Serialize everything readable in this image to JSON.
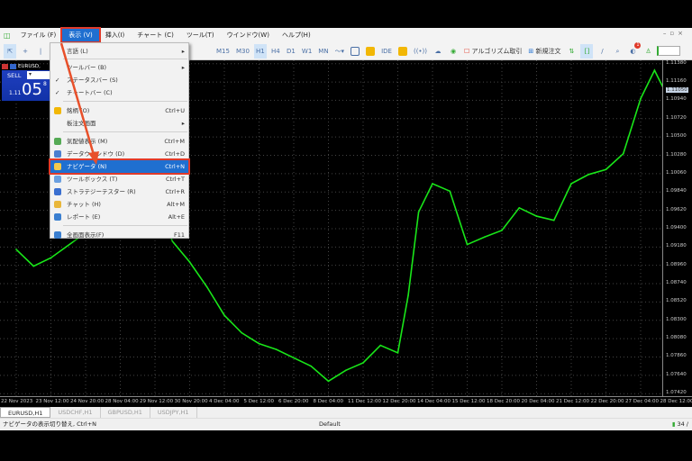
{
  "menubar": {
    "items": [
      "ファイル (F)",
      "表示 (V)",
      "挿入(I)",
      "チャート (C)",
      "ツール(T)",
      "ウインドウ(W)",
      "ヘルプ(H)"
    ],
    "active": "表示 (V)"
  },
  "toolbar": {
    "timeframes": [
      "M15",
      "M30",
      "H1",
      "H4",
      "D1",
      "W1",
      "MN"
    ],
    "selected_timeframe": "H1",
    "ide": "IDE",
    "algo_trading": "アルゴリズム取引",
    "new_order": "新規注文",
    "notification_count": "1"
  },
  "view_menu": {
    "items": [
      {
        "label": "言語 (L)",
        "shortcut": "",
        "submenu": true,
        "checked": false,
        "icon": ""
      },
      {
        "label": "ツールバー (B)",
        "shortcut": "",
        "submenu": true,
        "checked": false,
        "icon": ""
      },
      {
        "label": "ステータスバー (S)",
        "shortcut": "",
        "submenu": false,
        "checked": true,
        "icon": ""
      },
      {
        "label": "チャートバー (C)",
        "shortcut": "",
        "submenu": false,
        "checked": true,
        "icon": ""
      },
      {
        "label": "銘柄 (O)",
        "shortcut": "Ctrl+U",
        "submenu": false,
        "checked": false,
        "icon": "symbols-icon"
      },
      {
        "label": "板注文画面",
        "shortcut": "",
        "submenu": true,
        "checked": false,
        "icon": ""
      },
      {
        "label": "気配値表示 (M)",
        "shortcut": "Ctrl+M",
        "submenu": false,
        "checked": false,
        "icon": "market-watch-icon"
      },
      {
        "label": "データウインドウ (D)",
        "shortcut": "Ctrl+D",
        "submenu": false,
        "checked": false,
        "icon": "data-window-icon"
      },
      {
        "label": "ナビゲータ (N)",
        "shortcut": "Ctrl+N",
        "submenu": false,
        "checked": false,
        "icon": "navigator-folder-icon",
        "highlighted": true
      },
      {
        "label": "ツールボックス (T)",
        "shortcut": "Ctrl+T",
        "submenu": false,
        "checked": false,
        "icon": "toolbox-icon"
      },
      {
        "label": "ストラテジーテスター (R)",
        "shortcut": "Ctrl+R",
        "submenu": false,
        "checked": false,
        "icon": "strategy-tester-icon"
      },
      {
        "label": "チャット (H)",
        "shortcut": "Alt+M",
        "submenu": false,
        "checked": false,
        "icon": "chat-icon"
      },
      {
        "label": "レポート (E)",
        "shortcut": "Alt+E",
        "submenu": false,
        "checked": false,
        "icon": "report-icon"
      },
      {
        "label": "全画面表示(F)",
        "shortcut": "F11",
        "submenu": false,
        "checked": false,
        "icon": "fullscreen-icon"
      }
    ]
  },
  "trade_panel": {
    "symbol": "EURUSD,",
    "sell_label": "SELL",
    "price_prefix": "1.11",
    "price_big": "05",
    "price_sup": "8"
  },
  "colors": {
    "accent": "#1f6fd0",
    "highlight_border": "#e03a2a",
    "candles": "#19e619",
    "sell_bg": "#1232a8"
  },
  "chart_data": {
    "type": "line",
    "symbol": "EURUSD",
    "timeframe": "H1",
    "y_ticks": [
      "1.11380",
      "1.11160",
      "1.10940",
      "1.10720",
      "1.10500",
      "1.10280",
      "1.10060",
      "1.09840",
      "1.09620",
      "1.09400",
      "1.09180",
      "1.08960",
      "1.08740",
      "1.08520",
      "1.08300",
      "1.08080",
      "1.07860",
      "1.07640",
      "1.07420"
    ],
    "current_price": "1.11050",
    "ylim": [
      1.0739,
      1.1142
    ],
    "x_ticks": [
      "22 Nov 2023",
      "23 Nov 12:00",
      "24 Nov 20:00",
      "28 Nov 04:00",
      "29 Nov 12:00",
      "30 Nov 20:00",
      "4 Dec 04:00",
      "5 Dec 12:00",
      "6 Dec 20:00",
      "8 Dec 04:00",
      "11 Dec 12:00",
      "12 Dec 20:00",
      "14 Dec 04:00",
      "15 Dec 12:00",
      "18 Dec 20:00",
      "20 Dec 04:00",
      "21 Dec 12:00",
      "22 Dec 20:00",
      "27 Dec 04:00",
      "28 Dec 12:00"
    ],
    "points": [
      [
        0,
        1.0915
      ],
      [
        0.5,
        1.0895
      ],
      [
        1,
        1.0905
      ],
      [
        2,
        1.0935
      ],
      [
        3,
        1.096
      ],
      [
        4,
        1.0985
      ],
      [
        4.5,
        1.0925
      ],
      [
        5,
        1.09
      ],
      [
        5.5,
        1.087
      ],
      [
        6,
        1.0836
      ],
      [
        6.5,
        1.0815
      ],
      [
        7,
        1.0802
      ],
      [
        7.5,
        1.0795
      ],
      [
        8,
        1.0785
      ],
      [
        8.5,
        1.0775
      ],
      [
        9,
        1.0757
      ],
      [
        9.5,
        1.077
      ],
      [
        10,
        1.0779
      ],
      [
        10.5,
        1.08
      ],
      [
        11,
        1.0791
      ],
      [
        11.3,
        1.086
      ],
      [
        11.6,
        1.096
      ],
      [
        12,
        1.0994
      ],
      [
        12.5,
        1.0985
      ],
      [
        13,
        1.0921
      ],
      [
        13.5,
        1.093
      ],
      [
        14,
        1.0938
      ],
      [
        14.5,
        1.0965
      ],
      [
        15,
        1.0955
      ],
      [
        15.5,
        1.095
      ],
      [
        16,
        1.0994
      ],
      [
        16.5,
        1.1005
      ],
      [
        17,
        1.1011
      ],
      [
        17.5,
        1.103
      ],
      [
        18,
        1.1096
      ],
      [
        18.4,
        1.113
      ],
      [
        18.7,
        1.1105
      ]
    ],
    "points_x_unit": "x_ticks index",
    "grid": true
  },
  "tabs": [
    "EURUSD,H1",
    "USDCHF,H1",
    "GBPUSD,H1",
    "USDJPY,H1"
  ],
  "active_tab": "EURUSD,H1",
  "status": {
    "hint": "ナビゲータの表示切り替え, Ctrl+N",
    "profile": "Default",
    "connection": "34 /"
  }
}
